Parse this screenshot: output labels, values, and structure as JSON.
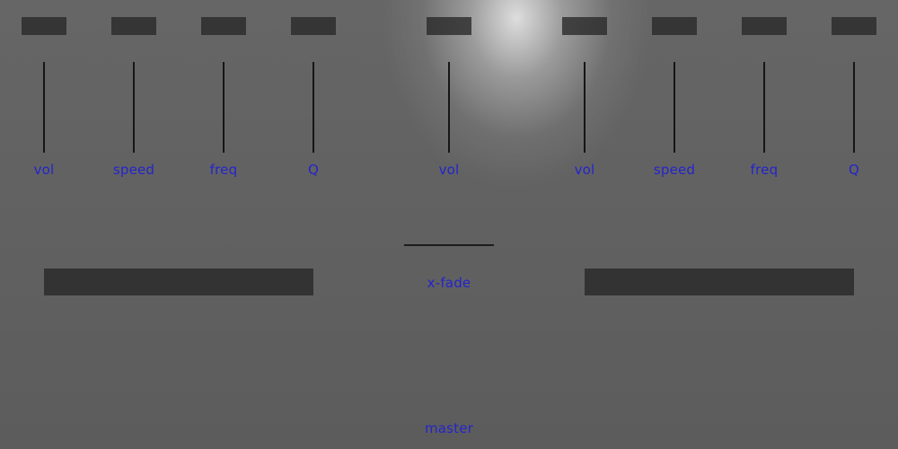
{
  "deck_a": {
    "controls": [
      {
        "label": "vol"
      },
      {
        "label": "speed"
      },
      {
        "label": "freq"
      },
      {
        "label": "Q"
      }
    ]
  },
  "center": {
    "vol_label": "vol",
    "xfade_label": "x-fade"
  },
  "deck_b": {
    "controls": [
      {
        "label": "vol"
      },
      {
        "label": "speed"
      },
      {
        "label": "freq"
      },
      {
        "label": "Q"
      }
    ]
  },
  "master": {
    "label": "master"
  },
  "colors": {
    "label_text": "#2424cc",
    "button": "#333333",
    "slider_track": "#161616",
    "level_bar": "#333333",
    "background": "#5e5e5e"
  }
}
